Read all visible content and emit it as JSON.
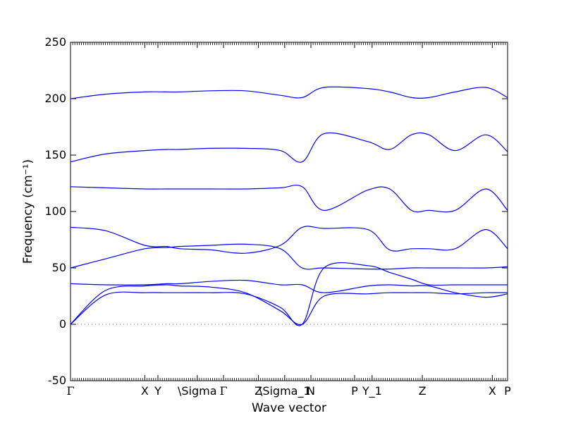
{
  "chart_data": {
    "type": "line",
    "xlabel": "Wave vector",
    "ylabel": "Frequency (cm⁻¹)",
    "ylim": [
      -50,
      250
    ],
    "yticks": [
      -50,
      0,
      50,
      100,
      150,
      200,
      250
    ],
    "zero_line": true,
    "x": [
      0.0,
      0.8,
      1.7,
      2.2,
      2.5,
      3.2,
      4.0,
      4.8,
      5.3,
      5.8,
      6.8,
      7.3,
      7.8,
      8.2,
      8.8,
      9.5,
      10.0
    ],
    "x_ticks": [
      {
        "value": 0.0,
        "label": "Γ"
      },
      {
        "value": 1.7,
        "label": "X"
      },
      {
        "value": 2.0,
        "label": "Y"
      },
      {
        "value": 2.9,
        "label": "\\Sigma"
      },
      {
        "value": 3.5,
        "label": "Γ"
      },
      {
        "value": 4.3,
        "label": "Z"
      },
      {
        "value": 4.9,
        "label": "\\Sigma_1"
      },
      {
        "value": 5.5,
        "label": "N"
      },
      {
        "value": 6.5,
        "label": "P"
      },
      {
        "value": 6.9,
        "label": "Y_1"
      },
      {
        "value": 8.05,
        "label": "Z"
      },
      {
        "value": 9.65,
        "label": "X"
      },
      {
        "value": 10.0,
        "label": "P"
      }
    ],
    "series": [
      {
        "values": [
          0,
          30,
          34,
          35,
          34,
          33,
          28,
          12,
          0,
          25,
          27,
          28,
          28,
          28,
          27,
          28,
          28
        ]
      },
      {
        "values": [
          0,
          26,
          28,
          28,
          28,
          28,
          27,
          15,
          0,
          50,
          52,
          46,
          40,
          35,
          35,
          35,
          35
        ]
      },
      {
        "values": [
          36,
          35,
          35,
          36,
          36,
          38,
          39,
          35,
          35,
          28,
          34,
          35,
          34,
          34,
          28,
          24,
          27
        ]
      },
      {
        "values": [
          50,
          58,
          67,
          68,
          69,
          70,
          71,
          67,
          50,
          50,
          49,
          49,
          50,
          50,
          50,
          50,
          51
        ]
      },
      {
        "values": [
          86,
          83,
          70,
          69,
          67,
          66,
          63,
          70,
          86,
          85,
          84,
          66,
          67,
          67,
          67,
          84,
          67
        ]
      },
      {
        "values": [
          122,
          121,
          120,
          120,
          120,
          120,
          120,
          121,
          122,
          101,
          119,
          120,
          101,
          101,
          101,
          120,
          101
        ]
      },
      {
        "values": [
          144,
          151,
          154,
          155,
          155,
          156,
          156,
          154,
          144,
          169,
          162,
          155,
          168,
          168,
          154,
          168,
          153
        ]
      },
      {
        "values": [
          200,
          204,
          206,
          206,
          206,
          207,
          207,
          203,
          201,
          210,
          209,
          206,
          201,
          201,
          206,
          210,
          201
        ]
      }
    ],
    "line_color": "#0000ff",
    "zero_line_color": "#4f4fff"
  }
}
